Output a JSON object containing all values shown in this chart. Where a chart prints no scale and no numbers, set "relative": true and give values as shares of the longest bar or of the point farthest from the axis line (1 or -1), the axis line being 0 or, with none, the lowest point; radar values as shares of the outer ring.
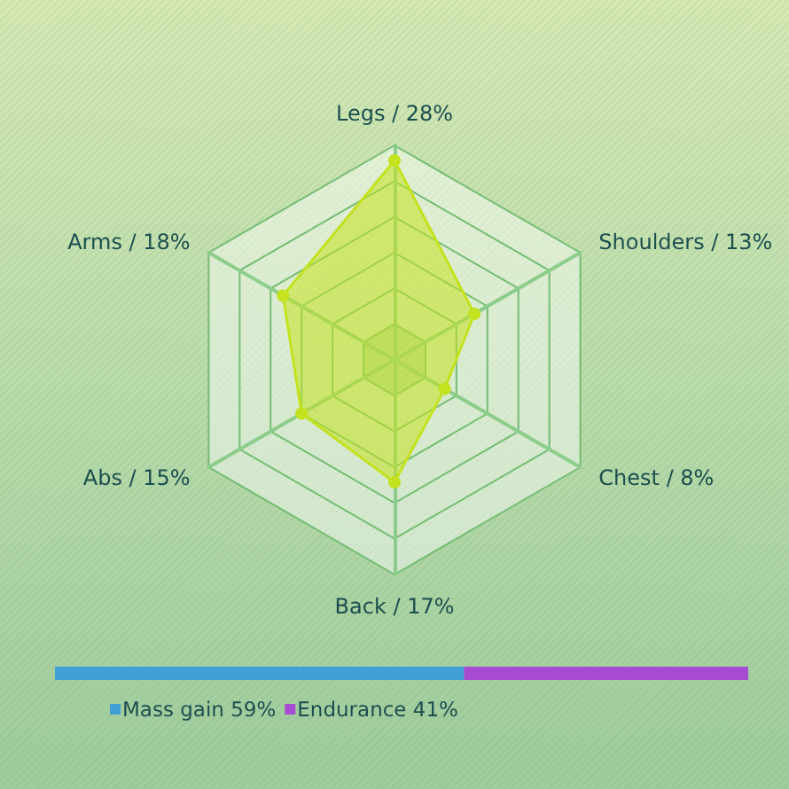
{
  "chart_data": [
    {
      "type": "radar",
      "categories": [
        "Legs / 28%",
        "Shoulders / 13%",
        "Chest / 8%",
        "Back / 17%",
        "Abs / 15%",
        "Arms / 18%"
      ],
      "relative": true,
      "series": [
        {
          "color": "#c4e21f",
          "values": [
            0.93,
            0.43,
            0.27,
            0.57,
            0.5,
            0.6
          ]
        }
      ],
      "marker": "circle",
      "grid": true
    },
    {
      "type": "bar",
      "orientation": "horizontal",
      "stacked": true,
      "relative": true,
      "categories": [
        null
      ],
      "series": [
        {
          "name": "Mass gain 59%",
          "color": "#40a0d6",
          "values": [
            0.59
          ]
        },
        {
          "name": "Endurance 41%",
          "color": "#a74cd2",
          "values": [
            0.41
          ]
        }
      ],
      "legend": "bottom left"
    }
  ]
}
